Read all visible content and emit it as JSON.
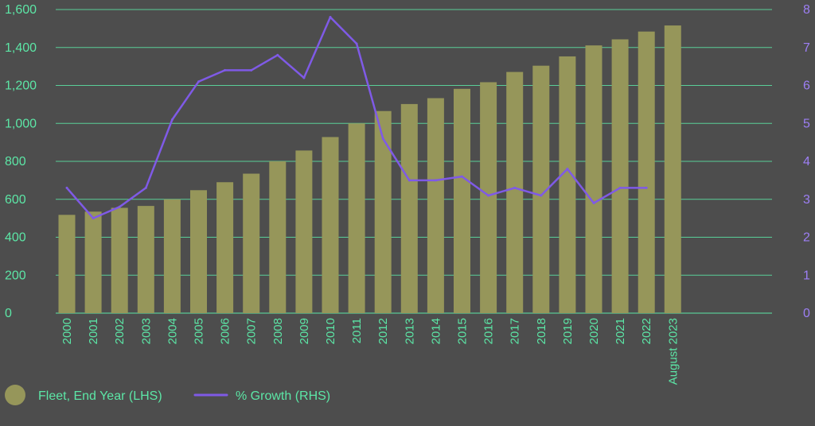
{
  "chart_data": {
    "type": "bar",
    "categories": [
      "2000",
      "2001",
      "2002",
      "2003",
      "2004",
      "2005",
      "2006",
      "2007",
      "2008",
      "2009",
      "2010",
      "2011",
      "2012",
      "2013",
      "2014",
      "2015",
      "2016",
      "2017",
      "2018",
      "2019",
      "2020",
      "2021",
      "2022",
      "August 2023"
    ],
    "series": [
      {
        "name": "Fleet, End Year (LHS)",
        "type": "bar",
        "axis": "left",
        "color": "#96965a",
        "values": [
          518,
          535,
          555,
          565,
          600,
          648,
          690,
          735,
          800,
          857,
          928,
          1000,
          1065,
          1102,
          1133,
          1182,
          1217,
          1271,
          1304,
          1353,
          1411,
          1443,
          1484,
          1516
        ]
      },
      {
        "name": "% Growth (RHS)",
        "type": "line",
        "axis": "right",
        "color": "#7f5ae6",
        "values": [
          3.3,
          2.5,
          2.8,
          3.3,
          5.1,
          6.1,
          6.4,
          6.4,
          6.8,
          6.2,
          7.8,
          7.1,
          4.6,
          3.5,
          3.5,
          3.6,
          3.1,
          3.3,
          3.1,
          3.8,
          2.9,
          3.3,
          3.3,
          null
        ]
      }
    ],
    "ylim_left": [
      0,
      1600
    ],
    "yticks_left": [
      "0",
      "200",
      "400",
      "600",
      "800",
      "1,000",
      "1,200",
      "1,400",
      "1,600"
    ],
    "ylim_right": [
      0,
      8
    ],
    "yticks_right": [
      "0",
      "1",
      "2",
      "3",
      "4",
      "5",
      "6",
      "7",
      "8"
    ],
    "grid": true,
    "legend_position": "bottom-left",
    "colors": {
      "background": "#4d4d4d",
      "grid": "#5ce6a6",
      "left_axis_text": "#5ce6a6",
      "right_axis_text": "#9d7ff5",
      "bar": "#96965a",
      "line": "#7f5ae6"
    }
  }
}
